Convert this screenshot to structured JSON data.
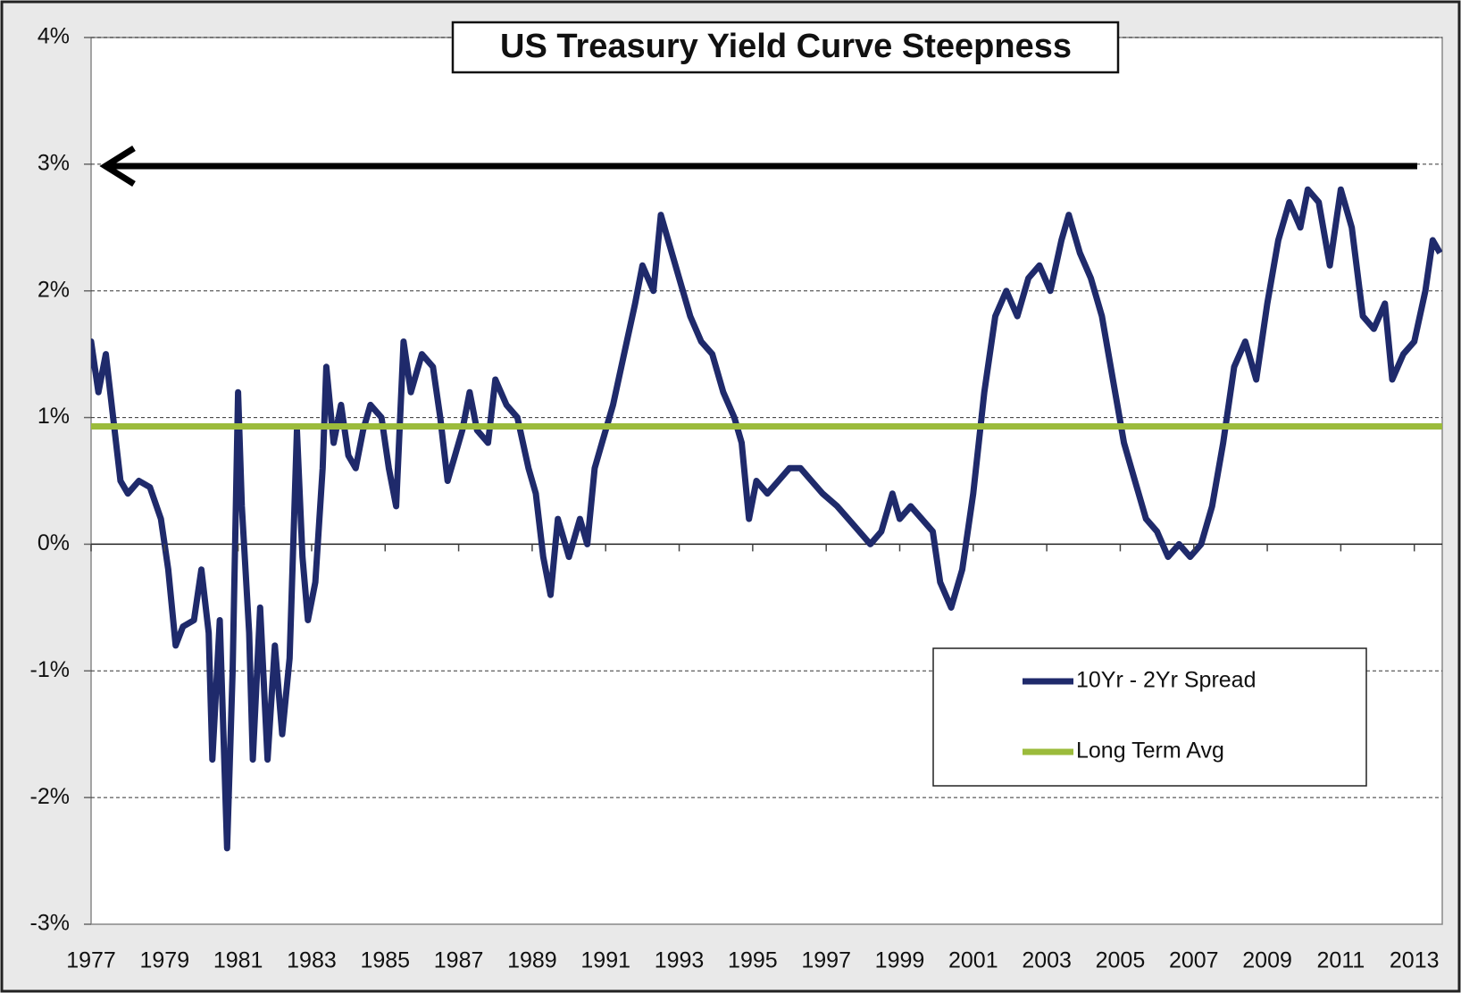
{
  "chart_data": {
    "type": "line",
    "title": "US Treasury Yield Curve Steepness",
    "x": [
      1976.9,
      1977.0,
      1977.2,
      1977.4,
      1977.6,
      1977.8,
      1978.0,
      1978.3,
      1978.6,
      1978.9,
      1979.1,
      1979.3,
      1979.5,
      1979.8,
      1980.0,
      1980.2,
      1980.3,
      1980.5,
      1980.6,
      1980.7,
      1980.85,
      1981.0,
      1981.1,
      1981.3,
      1981.4,
      1981.6,
      1981.8,
      1982.0,
      1982.2,
      1982.4,
      1982.6,
      1982.75,
      1982.9,
      1983.1,
      1983.3,
      1983.4,
      1983.6,
      1983.8,
      1984.0,
      1984.2,
      1984.4,
      1984.6,
      1984.9,
      1985.1,
      1985.3,
      1985.5,
      1985.7,
      1986.0,
      1986.3,
      1986.5,
      1986.7,
      1986.9,
      1987.1,
      1987.3,
      1987.5,
      1987.8,
      1988.0,
      1988.3,
      1988.6,
      1988.9,
      1989.1,
      1989.3,
      1989.5,
      1989.7,
      1990.0,
      1990.3,
      1990.5,
      1990.7,
      1990.9,
      1991.2,
      1991.5,
      1991.8,
      1992.0,
      1992.3,
      1992.5,
      1992.7,
      1993.0,
      1993.3,
      1993.6,
      1993.9,
      1994.2,
      1994.5,
      1994.7,
      1994.9,
      1995.1,
      1995.4,
      1995.7,
      1996.0,
      1996.3,
      1996.6,
      1996.9,
      1997.3,
      1997.6,
      1997.9,
      1998.2,
      1998.5,
      1998.8,
      1999.0,
      1999.3,
      1999.6,
      1999.9,
      2000.1,
      2000.4,
      2000.7,
      2001.0,
      2001.3,
      2001.6,
      2001.9,
      2002.2,
      2002.5,
      2002.8,
      2003.1,
      2003.4,
      2003.6,
      2003.9,
      2004.2,
      2004.5,
      2004.8,
      2005.1,
      2005.4,
      2005.7,
      2006.0,
      2006.3,
      2006.6,
      2006.9,
      2007.2,
      2007.5,
      2007.8,
      2008.1,
      2008.4,
      2008.7,
      2009.0,
      2009.3,
      2009.6,
      2009.9,
      2010.1,
      2010.4,
      2010.7,
      2011.0,
      2011.3,
      2011.6,
      2011.9,
      2012.2,
      2012.4,
      2012.7,
      2013.0,
      2013.3,
      2013.5,
      2013.7
    ],
    "series": [
      {
        "name": "10Yr - 2Yr Spread",
        "color": "#1f2a6b",
        "values": [
          1.3,
          1.6,
          1.2,
          1.5,
          1.0,
          0.5,
          0.4,
          0.5,
          0.45,
          0.2,
          -0.2,
          -0.8,
          -0.65,
          -0.6,
          -0.2,
          -0.7,
          -1.7,
          -0.6,
          -1.5,
          -2.4,
          -1.0,
          1.2,
          0.3,
          -0.7,
          -1.7,
          -0.5,
          -1.7,
          -0.8,
          -1.5,
          -0.9,
          0.9,
          -0.1,
          -0.6,
          -0.3,
          0.6,
          1.4,
          0.8,
          1.1,
          0.7,
          0.6,
          0.9,
          1.1,
          1.0,
          0.6,
          0.3,
          1.6,
          1.2,
          1.5,
          1.4,
          1.0,
          0.5,
          0.7,
          0.9,
          1.2,
          0.9,
          0.8,
          1.3,
          1.1,
          1.0,
          0.6,
          0.4,
          -0.1,
          -0.4,
          0.2,
          -0.1,
          0.2,
          0.0,
          0.6,
          0.8,
          1.1,
          1.5,
          1.9,
          2.2,
          2.0,
          2.6,
          2.4,
          2.1,
          1.8,
          1.6,
          1.5,
          1.2,
          1.0,
          0.8,
          0.2,
          0.5,
          0.4,
          0.5,
          0.6,
          0.6,
          0.5,
          0.4,
          0.3,
          0.2,
          0.1,
          0.0,
          0.1,
          0.4,
          0.2,
          0.3,
          0.2,
          0.1,
          -0.3,
          -0.5,
          -0.2,
          0.4,
          1.2,
          1.8,
          2.0,
          1.8,
          2.1,
          2.2,
          2.0,
          2.4,
          2.6,
          2.3,
          2.1,
          1.8,
          1.3,
          0.8,
          0.5,
          0.2,
          0.1,
          -0.1,
          0.0,
          -0.1,
          0.0,
          0.3,
          0.8,
          1.4,
          1.6,
          1.3,
          1.9,
          2.4,
          2.7,
          2.5,
          2.8,
          2.7,
          2.2,
          2.8,
          2.5,
          1.8,
          1.7,
          1.9,
          1.3,
          1.5,
          1.6,
          2.0,
          2.4,
          2.3
        ]
      },
      {
        "name": "Long Term Avg",
        "color": "#9bbb3b",
        "value": 0.93
      }
    ],
    "xlim": [
      1977,
      2013.76
    ],
    "xticks": [
      1977,
      1979,
      1981,
      1983,
      1985,
      1987,
      1989,
      1991,
      1993,
      1995,
      1997,
      1999,
      2001,
      2003,
      2005,
      2007,
      2009,
      2011,
      2013
    ],
    "ylim": [
      -3,
      4
    ],
    "yticks": [
      {
        "value": -3,
        "label": "-3%"
      },
      {
        "value": -2,
        "label": "-2%"
      },
      {
        "value": -1,
        "label": "-1%"
      },
      {
        "value": 0,
        "label": "0%"
      },
      {
        "value": 1,
        "label": "1%"
      },
      {
        "value": 2,
        "label": "2%"
      },
      {
        "value": 3,
        "label": "3%"
      },
      {
        "value": 4,
        "label": "4%"
      }
    ],
    "grid": true,
    "legend": "lower right"
  }
}
